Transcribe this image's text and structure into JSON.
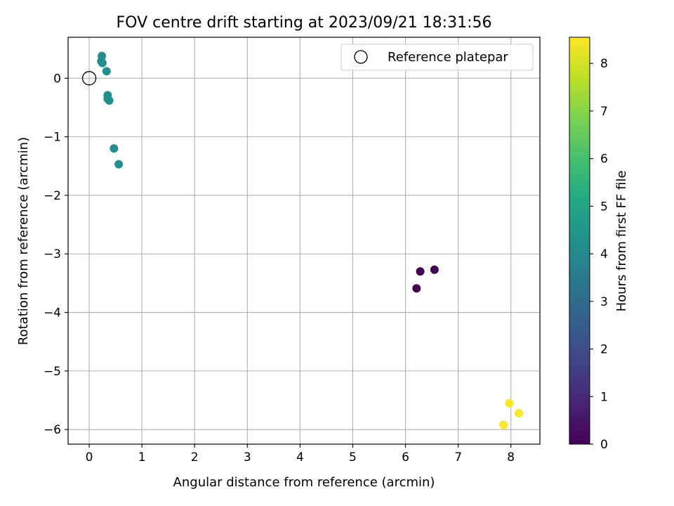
{
  "chart_data": {
    "type": "scatter",
    "title": "FOV centre drift starting at 2023/09/21 18:31:56",
    "xlabel": "Angular distance from reference (arcmin)",
    "ylabel": "Rotation from reference (arcmin)",
    "xlim": [
      -0.4,
      8.55
    ],
    "ylim": [
      -6.25,
      0.7
    ],
    "xticks": [
      0,
      1,
      2,
      3,
      4,
      5,
      6,
      7,
      8
    ],
    "yticks": [
      0,
      -1,
      -2,
      -3,
      -4,
      -5,
      -6
    ],
    "grid": true,
    "legend": {
      "position": "top-right",
      "entries": [
        "Reference platepar"
      ]
    },
    "reference_point": {
      "x": 0,
      "y": 0,
      "label": "Reference platepar"
    },
    "points": [
      {
        "x": 0.24,
        "y": 0.38,
        "hours": 4.2
      },
      {
        "x": 0.23,
        "y": 0.29,
        "hours": 4.2
      },
      {
        "x": 0.25,
        "y": 0.26,
        "hours": 4.2
      },
      {
        "x": 0.33,
        "y": 0.12,
        "hours": 4.2
      },
      {
        "x": 0.35,
        "y": -0.29,
        "hours": 4.2
      },
      {
        "x": 0.35,
        "y": -0.35,
        "hours": 4.2
      },
      {
        "x": 0.38,
        "y": -0.38,
        "hours": 4.2
      },
      {
        "x": 0.47,
        "y": -1.2,
        "hours": 4.2
      },
      {
        "x": 0.56,
        "y": -1.47,
        "hours": 4.2
      },
      {
        "x": 6.28,
        "y": -3.3,
        "hours": 0.05
      },
      {
        "x": 6.55,
        "y": -3.27,
        "hours": 0.05
      },
      {
        "x": 6.21,
        "y": -3.59,
        "hours": 0.0
      },
      {
        "x": 7.97,
        "y": -5.55,
        "hours": 8.5
      },
      {
        "x": 8.15,
        "y": -5.72,
        "hours": 8.5
      },
      {
        "x": 7.86,
        "y": -5.92,
        "hours": 8.5
      }
    ],
    "colorbar": {
      "label": "Hours from first FF file",
      "range": [
        0,
        8.55
      ],
      "ticks": [
        0,
        1,
        2,
        3,
        4,
        5,
        6,
        7,
        8
      ],
      "colormap": "viridis"
    }
  }
}
